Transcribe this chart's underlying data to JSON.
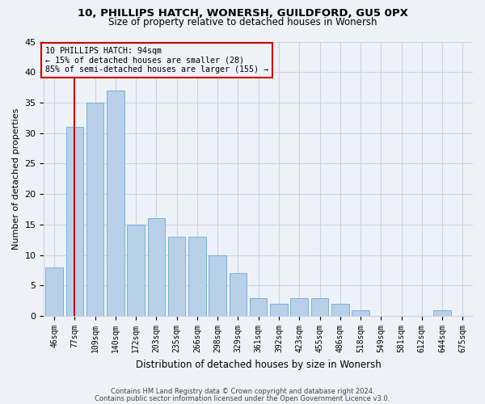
{
  "title1": "10, PHILLIPS HATCH, WONERSH, GUILDFORD, GU5 0PX",
  "title2": "Size of property relative to detached houses in Wonersh",
  "xlabel": "Distribution of detached houses by size in Wonersh",
  "ylabel": "Number of detached properties",
  "footnote1": "Contains HM Land Registry data © Crown copyright and database right 2024.",
  "footnote2": "Contains public sector information licensed under the Open Government Licence v3.0.",
  "categories": [
    "46sqm",
    "77sqm",
    "109sqm",
    "140sqm",
    "172sqm",
    "203sqm",
    "235sqm",
    "266sqm",
    "298sqm",
    "329sqm",
    "361sqm",
    "392sqm",
    "423sqm",
    "455sqm",
    "486sqm",
    "518sqm",
    "549sqm",
    "581sqm",
    "612sqm",
    "644sqm",
    "675sqm"
  ],
  "values": [
    8,
    31,
    35,
    37,
    15,
    16,
    13,
    13,
    10,
    7,
    3,
    2,
    3,
    3,
    2,
    1,
    0,
    0,
    0,
    1,
    0
  ],
  "bar_color": "#b8d0ea",
  "bar_edge_color": "#6aaad4",
  "bg_color": "#eef2f8",
  "grid_color": "#ccd4e0",
  "vline_x": 1.0,
  "vline_color": "#cc0000",
  "annotation_text": "10 PHILLIPS HATCH: 94sqm\n← 15% of detached houses are smaller (28)\n85% of semi-detached houses are larger (155) →",
  "annotation_box_color": "#cc0000",
  "ylim": [
    0,
    45
  ],
  "yticks": [
    0,
    5,
    10,
    15,
    20,
    25,
    30,
    35,
    40,
    45
  ]
}
